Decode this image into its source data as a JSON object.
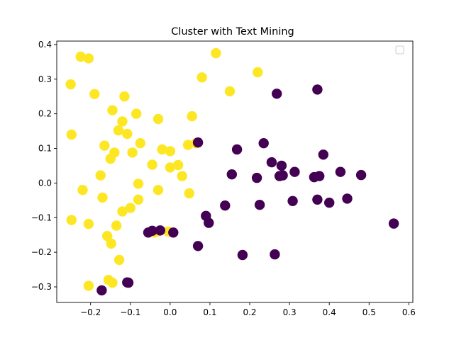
{
  "chart_data": {
    "type": "scatter",
    "title": "Cluster with Text Mining",
    "xlabel": "",
    "ylabel": "",
    "xlim": [
      -0.285,
      0.61
    ],
    "ylim": [
      -0.345,
      0.41
    ],
    "xticks": [
      -0.2,
      -0.1,
      0.0,
      0.1,
      0.2,
      0.3,
      0.4,
      0.5,
      0.6
    ],
    "xtick_labels": [
      "−0.2",
      "−0.1",
      "0.0",
      "0.1",
      "0.2",
      "0.3",
      "0.4",
      "0.5",
      "0.6"
    ],
    "yticks": [
      -0.3,
      -0.2,
      -0.1,
      0.0,
      0.1,
      0.2,
      0.3,
      0.4
    ],
    "ytick_labels": [
      "−0.3",
      "−0.2",
      "−0.1",
      "0.0",
      "0.1",
      "0.2",
      "0.3",
      "0.4"
    ],
    "grid": false,
    "legend": {
      "placement": "top-right",
      "entries": []
    },
    "series": [
      {
        "color": "#fde725",
        "points": [
          [
            -0.225,
            0.365
          ],
          [
            -0.205,
            0.36
          ],
          [
            -0.25,
            0.285
          ],
          [
            -0.19,
            0.257
          ],
          [
            -0.115,
            0.25
          ],
          [
            -0.145,
            0.21
          ],
          [
            -0.085,
            0.2
          ],
          [
            -0.12,
            0.178
          ],
          [
            -0.13,
            0.152
          ],
          [
            -0.108,
            0.142
          ],
          [
            -0.248,
            0.14
          ],
          [
            -0.075,
            0.115
          ],
          [
            -0.165,
            0.108
          ],
          [
            -0.095,
            0.088
          ],
          [
            -0.14,
            0.088
          ],
          [
            -0.15,
            0.07
          ],
          [
            -0.175,
            0.022
          ],
          [
            -0.045,
            0.053
          ],
          [
            -0.22,
            -0.02
          ],
          [
            -0.17,
            -0.042
          ],
          [
            -0.08,
            -0.002
          ],
          [
            -0.08,
            -0.048
          ],
          [
            -0.1,
            -0.072
          ],
          [
            -0.12,
            -0.082
          ],
          [
            -0.248,
            -0.107
          ],
          [
            -0.205,
            -0.118
          ],
          [
            -0.135,
            -0.123
          ],
          [
            -0.158,
            -0.153
          ],
          [
            -0.148,
            -0.175
          ],
          [
            -0.128,
            -0.222
          ],
          [
            -0.155,
            -0.28
          ],
          [
            -0.145,
            -0.288
          ],
          [
            -0.205,
            -0.297
          ],
          [
            -0.03,
            0.185
          ],
          [
            0.115,
            0.375
          ],
          [
            0.22,
            0.32
          ],
          [
            0.08,
            0.305
          ],
          [
            0.15,
            0.265
          ],
          [
            0.055,
            0.193
          ],
          [
            -0.02,
            0.097
          ],
          [
            0.0,
            0.092
          ],
          [
            0.045,
            0.11
          ],
          [
            0.065,
            0.115
          ],
          [
            0.02,
            0.052
          ],
          [
            0.0,
            0.045
          ],
          [
            0.03,
            0.02
          ],
          [
            -0.03,
            -0.02
          ],
          [
            0.048,
            -0.03
          ],
          [
            -0.03,
            -0.14
          ],
          [
            -0.005,
            -0.14
          ],
          [
            -0.04,
            -0.143
          ]
        ]
      },
      {
        "color": "#440154",
        "points": [
          [
            0.37,
            0.27
          ],
          [
            0.268,
            0.258
          ],
          [
            0.07,
            0.117
          ],
          [
            0.235,
            0.115
          ],
          [
            0.168,
            0.097
          ],
          [
            0.385,
            0.082
          ],
          [
            0.255,
            0.06
          ],
          [
            0.28,
            0.05
          ],
          [
            0.313,
            0.032
          ],
          [
            0.428,
            0.032
          ],
          [
            0.155,
            0.025
          ],
          [
            0.275,
            0.02
          ],
          [
            0.283,
            0.022
          ],
          [
            0.375,
            0.02
          ],
          [
            0.48,
            0.023
          ],
          [
            0.362,
            0.017
          ],
          [
            0.218,
            0.015
          ],
          [
            0.37,
            -0.048
          ],
          [
            0.308,
            -0.052
          ],
          [
            0.445,
            -0.045
          ],
          [
            0.4,
            -0.057
          ],
          [
            0.138,
            -0.065
          ],
          [
            0.225,
            -0.063
          ],
          [
            0.09,
            -0.095
          ],
          [
            0.097,
            -0.115
          ],
          [
            0.562,
            -0.117
          ],
          [
            -0.055,
            -0.143
          ],
          [
            -0.045,
            -0.138
          ],
          [
            -0.025,
            -0.137
          ],
          [
            0.008,
            -0.143
          ],
          [
            0.07,
            -0.182
          ],
          [
            0.182,
            -0.208
          ],
          [
            0.263,
            -0.206
          ],
          [
            -0.105,
            -0.288
          ],
          [
            -0.108,
            -0.287
          ],
          [
            -0.172,
            -0.31
          ]
        ]
      }
    ]
  }
}
